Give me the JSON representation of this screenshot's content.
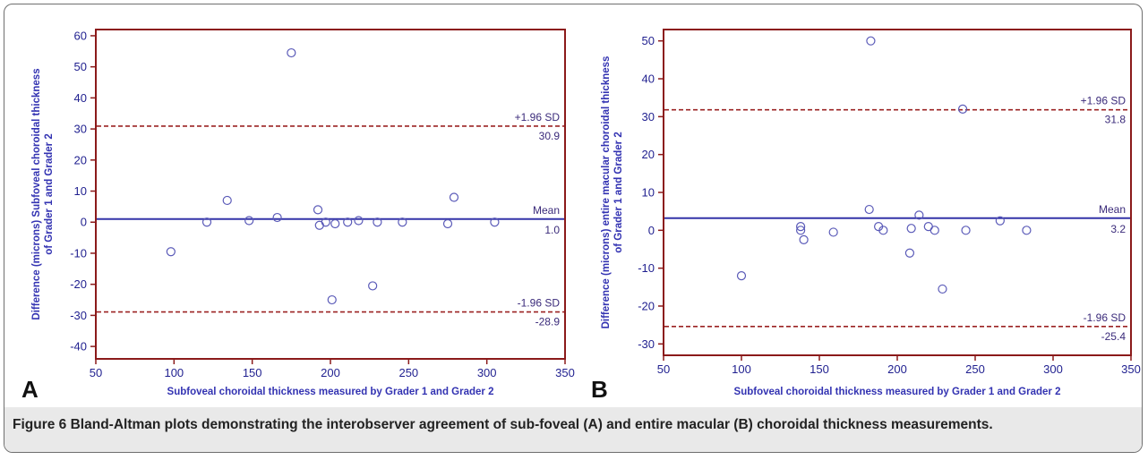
{
  "caption": {
    "label": "Figure 6",
    "text": "Bland-Altman plots demonstrating the interobserver agreement of sub-foveal (A) and entire macular (B) choroidal thickness measurements."
  },
  "colors": {
    "axis_frame": "#8b1a1a",
    "mean_line": "#3434a8",
    "sd_line": "#9b2323",
    "marker": "#5a5ab8",
    "tick_text": "#1f1f8f",
    "title_text": "#3333b2"
  },
  "chart_data": [
    {
      "type": "scatter",
      "panel": "A",
      "xlabel": "Subfoveal choroidal thickness measured by Grader 1 and Grader 2",
      "ylabel": "Difference (microns) Subfoveal choroidal thickness of Grader 1 and Grader 2",
      "xlim": [
        50,
        350
      ],
      "ylim": [
        -44,
        62
      ],
      "xticks": [
        50,
        100,
        150,
        200,
        250,
        300,
        350
      ],
      "yticks": [
        -40,
        -30,
        -20,
        -10,
        0,
        10,
        20,
        30,
        40,
        50,
        60
      ],
      "reference_lines": [
        {
          "name": "+1.96 SD",
          "value": 30.9,
          "value_label": "30.9",
          "style": "dashed"
        },
        {
          "name": "Mean",
          "value": 1.0,
          "value_label": "1.0",
          "style": "solid"
        },
        {
          "name": "-1.96 SD",
          "value": -28.9,
          "value_label": "-28.9",
          "style": "dashed"
        }
      ],
      "points": [
        {
          "x": 98,
          "y": -9.5
        },
        {
          "x": 121,
          "y": 0
        },
        {
          "x": 134,
          "y": 7
        },
        {
          "x": 148,
          "y": 0.5
        },
        {
          "x": 166,
          "y": 1.5
        },
        {
          "x": 175,
          "y": 54.5
        },
        {
          "x": 192,
          "y": 4
        },
        {
          "x": 193,
          "y": -1
        },
        {
          "x": 197,
          "y": 0
        },
        {
          "x": 201,
          "y": -25
        },
        {
          "x": 203,
          "y": -0.5
        },
        {
          "x": 211,
          "y": 0
        },
        {
          "x": 218,
          "y": 0.5
        },
        {
          "x": 227,
          "y": -20.5
        },
        {
          "x": 230,
          "y": 0
        },
        {
          "x": 246,
          "y": 0
        },
        {
          "x": 275,
          "y": -0.5
        },
        {
          "x": 279,
          "y": 8
        },
        {
          "x": 305,
          "y": 0
        }
      ],
      "legend": "none",
      "grid": false
    },
    {
      "type": "scatter",
      "panel": "B",
      "xlabel": "Subfoveal choroidal thickness measured by Grader 1 and Grader 2",
      "ylabel": "Difference (microns) entire macular  choroidal thickness of Grader 1 and Grader 2",
      "xlim": [
        50,
        350
      ],
      "ylim": [
        -33,
        53
      ],
      "xticks": [
        50,
        100,
        150,
        200,
        250,
        300,
        350
      ],
      "yticks": [
        -30,
        -20,
        -10,
        0,
        10,
        20,
        30,
        40,
        50
      ],
      "reference_lines": [
        {
          "name": "+1.96 SD",
          "value": 31.8,
          "value_label": "31.8",
          "style": "dashed"
        },
        {
          "name": "Mean",
          "value": 3.2,
          "value_label": "3.2",
          "style": "solid"
        },
        {
          "name": "-1.96 SD",
          "value": -25.4,
          "value_label": "-25.4",
          "style": "dashed"
        }
      ],
      "points": [
        {
          "x": 100,
          "y": -12
        },
        {
          "x": 138,
          "y": 1
        },
        {
          "x": 138,
          "y": 0
        },
        {
          "x": 140,
          "y": -2.5
        },
        {
          "x": 159,
          "y": -0.5
        },
        {
          "x": 182,
          "y": 5.5
        },
        {
          "x": 183,
          "y": 50
        },
        {
          "x": 188,
          "y": 1
        },
        {
          "x": 191,
          "y": 0
        },
        {
          "x": 208,
          "y": -6
        },
        {
          "x": 209,
          "y": 0.5
        },
        {
          "x": 214,
          "y": 4
        },
        {
          "x": 220,
          "y": 1
        },
        {
          "x": 224,
          "y": 0
        },
        {
          "x": 229,
          "y": -15.5
        },
        {
          "x": 242,
          "y": 32
        },
        {
          "x": 244,
          "y": 0
        },
        {
          "x": 266,
          "y": 2.5
        },
        {
          "x": 283,
          "y": 0
        }
      ],
      "legend": "none",
      "grid": false
    }
  ]
}
